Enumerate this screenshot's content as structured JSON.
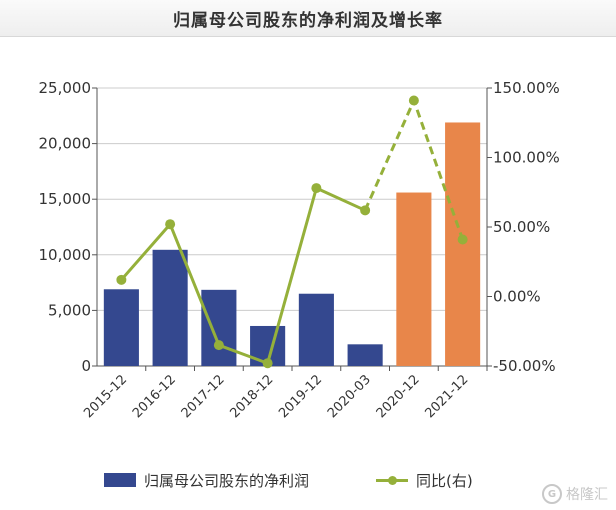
{
  "title": "归属母公司股东的净利润及增长率",
  "colors": {
    "bar_default": "#34488f",
    "bar_highlight": "#e8864a",
    "line": "#95b03a",
    "axis": "#555555",
    "grid": "#cccccc"
  },
  "chart_data": {
    "type": "bar",
    "title": "归属母公司股东的净利润及增长率",
    "categories": [
      "2015-12",
      "2016-12",
      "2017-12",
      "2018-12",
      "2019-12",
      "2020-03",
      "2020-12",
      "2021-12"
    ],
    "series": [
      {
        "name": "归属母公司股东的净利润",
        "type": "bar",
        "axis": "left",
        "values": [
          6900,
          10450,
          6850,
          3600,
          6500,
          1950,
          15600,
          21900
        ],
        "highlighted": [
          false,
          false,
          false,
          false,
          false,
          false,
          true,
          true
        ]
      },
      {
        "name": "同比(右)",
        "type": "line",
        "axis": "right",
        "values": [
          12,
          52,
          -35,
          -48,
          78,
          62,
          141,
          41
        ],
        "dashed_from_index": 5
      }
    ],
    "left_axis": {
      "min": 0,
      "max": 25000,
      "ticks": [
        "0",
        "5,000",
        "10,000",
        "15,000",
        "20,000",
        "25,000"
      ]
    },
    "right_axis": {
      "min": -50,
      "max": 150,
      "ticks": [
        "-50.00%",
        "0.00%",
        "50.00%",
        "100.00%",
        "150.00%"
      ]
    },
    "grid": true,
    "legend_position": "bottom"
  },
  "legend": {
    "bar_label": "归属母公司股东的净利润",
    "line_label": "同比(右)"
  },
  "watermark": {
    "icon": "G",
    "text": "格隆汇"
  }
}
